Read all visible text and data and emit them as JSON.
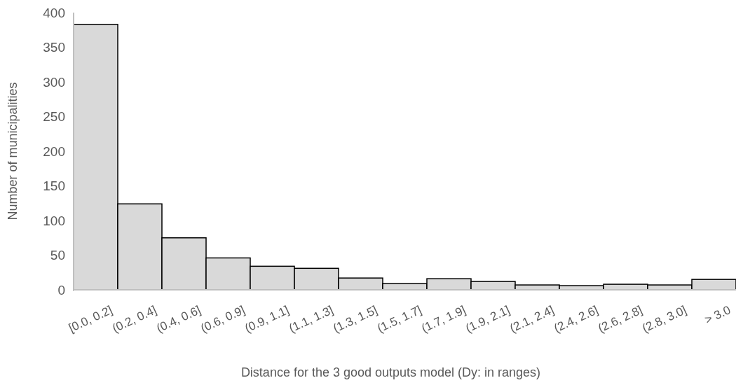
{
  "chart_data": {
    "type": "bar",
    "xlabel": "Distance for the 3 good outputs model (Dy: in ranges)",
    "ylabel": "Number of municipalities",
    "categories": [
      "[0.0, 0.2]",
      "(0.2, 0.4]",
      "(0.4, 0.6]",
      "(0.6, 0.9]",
      "(0.9, 1.1]",
      "(1.1, 1.3]",
      "(1.3, 1.5]",
      "(1.5, 1.7]",
      "(1.7, 1.9]",
      "(1.9, 2.1]",
      "(2.1, 2.4]",
      "(2.4, 2.6]",
      "(2.6, 2.8]",
      "(2.8, 3.0]",
      "> 3.0"
    ],
    "values": [
      383,
      124,
      75,
      46,
      34,
      31,
      17,
      9,
      16,
      12,
      7,
      6,
      8,
      7,
      15
    ],
    "color": "#d9d9d9",
    "ylim": [
      0,
      400
    ],
    "yticks": [
      0,
      50,
      100,
      150,
      200,
      250,
      300,
      350,
      400
    ],
    "grid": false
  }
}
